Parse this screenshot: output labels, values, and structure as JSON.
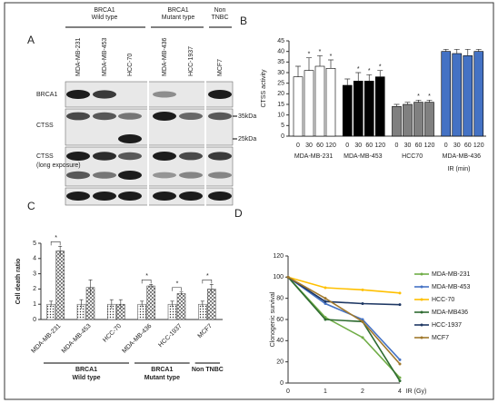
{
  "panels": [
    "A",
    "B",
    "C",
    "D"
  ],
  "blot": {
    "groups": [
      {
        "title": "BRCA1",
        "subtitle": "Wild type"
      },
      {
        "title": "BRCA1",
        "subtitle": "Mutant type"
      },
      {
        "title": "Non",
        "subtitle": "TNBC"
      }
    ],
    "lanes": [
      "MDA-MB-231",
      "MDA-MB-453",
      "HCC-70",
      "MDA-MB-436",
      "HCC-1937",
      "MCF7"
    ],
    "rows": [
      {
        "label": "BRCA1"
      },
      {
        "label": "CTSS"
      },
      {
        "label": "CTSS",
        "note": "(long exposure)"
      }
    ],
    "markers": [
      "35kDa",
      "25kDa"
    ]
  },
  "chart_data": [
    {
      "type": "grouped-bar",
      "y_label": "CTSS activity",
      "x_label": "IR (min)",
      "categories": [
        "0",
        "30",
        "60",
        "120"
      ],
      "ylim": [
        0,
        45
      ],
      "yticks": [
        0,
        5,
        10,
        15,
        20,
        25,
        30,
        35,
        40,
        45
      ],
      "series": [
        {
          "name": "MDA-MB-231",
          "color": "#ffffff",
          "values": [
            28,
            31,
            33,
            32
          ],
          "errors": [
            5,
            6,
            5,
            4
          ],
          "annotations": [
            null,
            "*",
            "*",
            "*"
          ]
        },
        {
          "name": "MDA-MB-453",
          "color": "#000000",
          "values": [
            24,
            26,
            26,
            28
          ],
          "errors": [
            3,
            4,
            3,
            3
          ],
          "annotations": [
            null,
            "*",
            "*",
            "*"
          ]
        },
        {
          "name": "HCC70",
          "color": "#808080",
          "values": [
            14,
            15,
            16,
            16
          ],
          "errors": [
            1,
            1,
            1,
            1
          ],
          "annotations": [
            null,
            null,
            "*",
            "*"
          ]
        },
        {
          "name": "MDA-MB-436",
          "color": "#4472c4",
          "values": [
            40,
            39,
            38,
            40
          ],
          "errors": [
            1,
            2,
            3,
            1
          ],
          "annotations": [
            null,
            null,
            null,
            null
          ]
        }
      ]
    },
    {
      "type": "bar",
      "y_label": "Cell death ratio",
      "categories": [
        "MDA-MB-231",
        "MDA-MB-453",
        "HCC-70",
        "MDA-MB-436",
        "HCC-1937",
        "MCF7"
      ],
      "groups": [
        {
          "title": "BRCA1",
          "subtitle": "Wild type"
        },
        {
          "title": "BRCA1",
          "subtitle": "Mutant type"
        },
        {
          "title": "Non TNBC"
        }
      ],
      "ylim": [
        0,
        5
      ],
      "yticks": [
        0,
        1,
        2,
        3,
        4,
        5
      ],
      "series": [
        {
          "pattern": "dots",
          "values": [
            1.0,
            1.0,
            1.0,
            1.0,
            1.0,
            1.0
          ],
          "errors": [
            0.2,
            0.3,
            0.3,
            0.2,
            0.2,
            0.2
          ]
        },
        {
          "pattern": "cross",
          "values": [
            4.5,
            2.1,
            1.0,
            2.2,
            1.7,
            2.0
          ],
          "errors": [
            0.3,
            0.5,
            0.3,
            0.1,
            0.1,
            0.3
          ]
        }
      ],
      "significance": [
        "*",
        null,
        null,
        "*",
        "*",
        "*"
      ]
    },
    {
      "type": "line",
      "y_label": "Clonogenic survival",
      "x_label": "IR (Gy)",
      "categories": [
        "0",
        "1",
        "2",
        "4"
      ],
      "ylim": [
        0,
        120
      ],
      "yticks": [
        0,
        20,
        40,
        60,
        80,
        100,
        120
      ],
      "series": [
        {
          "name": "MDA-MB-231",
          "color": "#70ad47",
          "values": [
            100,
            62,
            43,
            5
          ]
        },
        {
          "name": "MDA-MB-453",
          "color": "#4472c4",
          "values": [
            100,
            75,
            60,
            22
          ]
        },
        {
          "name": "HCC-70",
          "color": "#ffc000",
          "values": [
            100,
            90,
            88,
            85
          ]
        },
        {
          "name": "MDA-MB436",
          "color": "#2e6b30",
          "values": [
            100,
            60,
            58,
            2
          ]
        },
        {
          "name": "HCC-1937",
          "color": "#1f3864",
          "values": [
            100,
            77,
            75,
            74
          ]
        },
        {
          "name": "MCF7",
          "color": "#a0782c",
          "values": [
            100,
            80,
            58,
            18
          ]
        }
      ],
      "legend": "right"
    }
  ]
}
